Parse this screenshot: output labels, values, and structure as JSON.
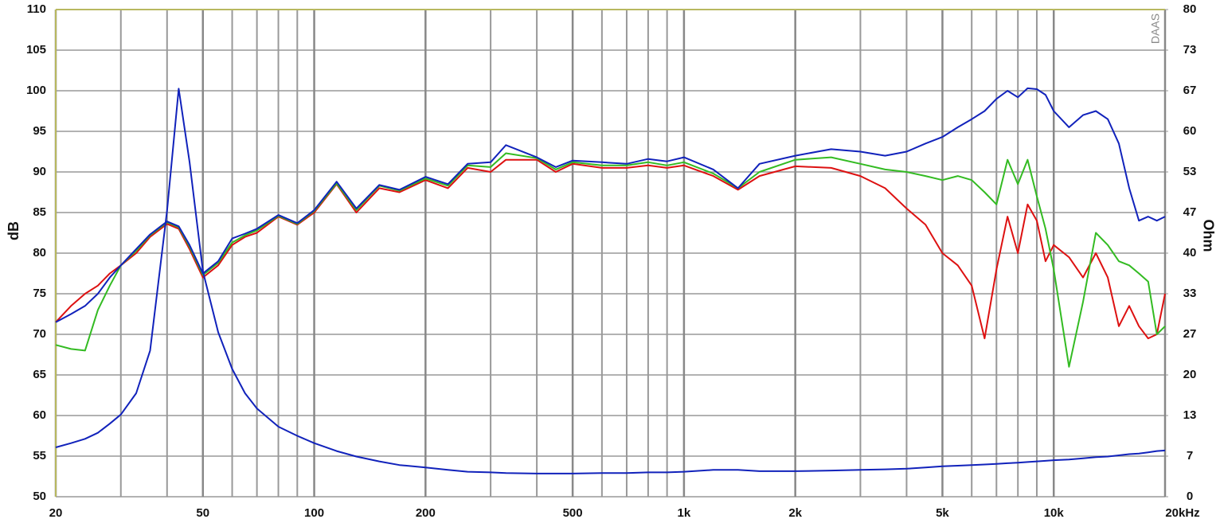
{
  "chart_data": {
    "type": "line",
    "ylabel": "dB",
    "y2label": "Ohm",
    "watermark": "DAAS",
    "xscale": "log",
    "grid": true,
    "xlim": [
      20,
      20000
    ],
    "ylim": [
      50,
      110
    ],
    "y2lim": [
      0,
      80
    ],
    "xticks": [
      20,
      50,
      100,
      200,
      500,
      {
        "value": 1000,
        "label": "1k"
      },
      {
        "value": 2000,
        "label": "2k"
      },
      {
        "value": 5000,
        "label": "5k"
      },
      {
        "value": 10000,
        "label": "10k"
      },
      {
        "value": 20000,
        "label": "20kHz"
      }
    ],
    "minor_xticks": [
      30,
      40,
      60,
      70,
      80,
      90,
      300,
      400,
      600,
      700,
      800,
      900,
      3000,
      4000,
      6000,
      7000,
      8000,
      9000
    ],
    "yticks": [
      50,
      55,
      60,
      65,
      70,
      75,
      80,
      85,
      90,
      95,
      100,
      105,
      110
    ],
    "y2ticks": [
      0,
      {
        "value": 6.6667,
        "label": "7"
      },
      {
        "value": 13.3333,
        "label": "13"
      },
      20,
      {
        "value": 26.6667,
        "label": "27"
      },
      {
        "value": 33.3333,
        "label": "33"
      },
      40,
      {
        "value": 46.6667,
        "label": "47"
      },
      {
        "value": 53.3333,
        "label": "53"
      },
      60,
      {
        "value": 66.6667,
        "label": "67"
      },
      {
        "value": 73.3333,
        "label": "73"
      },
      80
    ],
    "x": [
      20,
      22,
      24,
      26,
      28,
      30,
      33,
      36,
      40,
      43,
      46,
      50,
      55,
      60,
      65,
      70,
      80,
      90,
      100,
      115,
      130,
      150,
      170,
      200,
      230,
      260,
      300,
      330,
      400,
      450,
      500,
      600,
      700,
      800,
      900,
      1000,
      1200,
      1400,
      1600,
      2000,
      2500,
      3000,
      3500,
      4000,
      4500,
      5000,
      5500,
      6000,
      6500,
      7000,
      7500,
      8000,
      8500,
      9000,
      9500,
      10000,
      11000,
      12000,
      13000,
      14000,
      15000,
      16000,
      17000,
      18000,
      19000,
      20000
    ],
    "series": [
      {
        "color": "#dd1111",
        "values": [
          71.5,
          73.5,
          75,
          76,
          77.5,
          78.5,
          80,
          82,
          83.6,
          83,
          80.5,
          77,
          78.5,
          81,
          82,
          82.5,
          84.5,
          83.5,
          85,
          88.5,
          85,
          88,
          87.5,
          89,
          88,
          90.5,
          90,
          91.5,
          91.5,
          90,
          91,
          90.5,
          90.5,
          90.8,
          90.5,
          90.8,
          89.5,
          87.8,
          89.5,
          90.7,
          90.5,
          89.5,
          88,
          85.5,
          83.5,
          80,
          78.5,
          76,
          69.5,
          78,
          84.5,
          80,
          86,
          84,
          79,
          81,
          79.5,
          77,
          80,
          77,
          71,
          73.5,
          71,
          69.5,
          70,
          75
        ]
      },
      {
        "color": "#33bb22",
        "values": [
          68.7,
          68.2,
          68,
          73,
          76,
          78.5,
          80.3,
          82.2,
          83.8,
          83.2,
          80.8,
          77.3,
          78.8,
          81.3,
          82.2,
          82.8,
          84.6,
          83.6,
          85.2,
          88.6,
          85.3,
          88.3,
          87.7,
          89.2,
          88.3,
          90.8,
          90.6,
          92.3,
          91.7,
          90.3,
          91.2,
          90.8,
          90.8,
          91.2,
          90.8,
          91.2,
          89.8,
          88,
          90,
          91.5,
          91.8,
          91,
          90.3,
          90,
          89.5,
          89,
          89.5,
          89,
          87.5,
          86,
          91.5,
          88.5,
          91.5,
          87,
          83,
          78,
          66,
          74,
          82.5,
          81,
          79,
          78.5,
          77.5,
          76.5,
          70,
          71
        ]
      },
      {
        "color": "#1122bb",
        "values": [
          71.5,
          72.5,
          73.5,
          75,
          77,
          78.5,
          80.5,
          82.3,
          83.9,
          83.3,
          81,
          77.5,
          79,
          81.8,
          82.4,
          83,
          84.7,
          83.7,
          85.3,
          88.8,
          85.5,
          88.4,
          87.8,
          89.4,
          88.5,
          91,
          91.2,
          93.3,
          91.8,
          90.6,
          91.4,
          91.2,
          91,
          91.6,
          91.3,
          91.8,
          90.3,
          88,
          91,
          92,
          92.8,
          92.5,
          92,
          92.5,
          93.5,
          94.3,
          95.5,
          96.5,
          97.5,
          99,
          100,
          99.2,
          100.3,
          100.2,
          99.5,
          97.5,
          95.5,
          97,
          97.5,
          96.5,
          93.5,
          88,
          84,
          84.5,
          84,
          84.5
        ]
      },
      {
        "color": "#1122bb",
        "axis": "y2",
        "values": [
          8.1,
          8.8,
          9.5,
          10.5,
          12,
          13.5,
          17,
          24,
          47,
          67,
          55,
          37,
          27,
          21,
          17,
          14.5,
          11.5,
          10,
          8.8,
          7.5,
          6.6,
          5.8,
          5.2,
          4.8,
          4.4,
          4.1,
          4,
          3.9,
          3.8,
          3.8,
          3.8,
          3.9,
          3.9,
          4,
          4,
          4.1,
          4.4,
          4.4,
          4.2,
          4.2,
          4.3,
          4.4,
          4.5,
          4.6,
          4.8,
          5,
          5.1,
          5.2,
          5.3,
          5.4,
          5.5,
          5.6,
          5.7,
          5.8,
          5.9,
          6,
          6.1,
          6.3,
          6.5,
          6.6,
          6.8,
          7,
          7.1,
          7.3,
          7.5,
          7.6
        ]
      }
    ]
  }
}
